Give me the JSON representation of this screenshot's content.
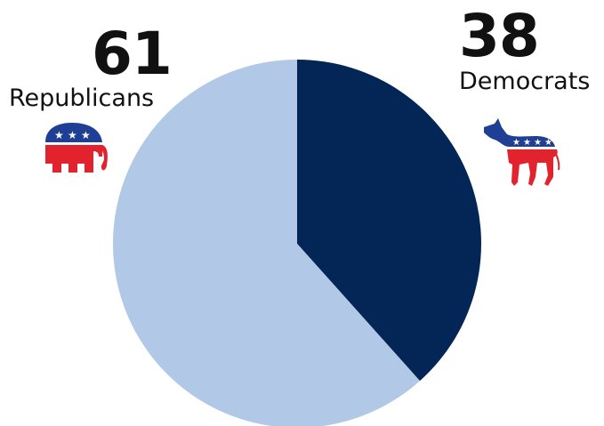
{
  "chart_data": {
    "type": "pie",
    "categories": [
      "Democrats",
      "Republicans"
    ],
    "values": [
      38,
      61
    ],
    "colors": {
      "Democrats": "#042656",
      "Republicans": "#b1c8e6"
    },
    "start_category": "Democrats",
    "direction": "clockwise-from-top",
    "labels": {
      "republicans": {
        "value": "61",
        "name": "Republicans"
      },
      "democrats": {
        "value": "38",
        "name": "Democrats"
      }
    }
  },
  "icons": {
    "republicans": "elephant-icon",
    "democrats": "donkey-icon"
  },
  "accent_colors": {
    "logo_blue": "#1f3f95",
    "logo_red": "#e2232e",
    "logo_white": "#ffffff"
  }
}
